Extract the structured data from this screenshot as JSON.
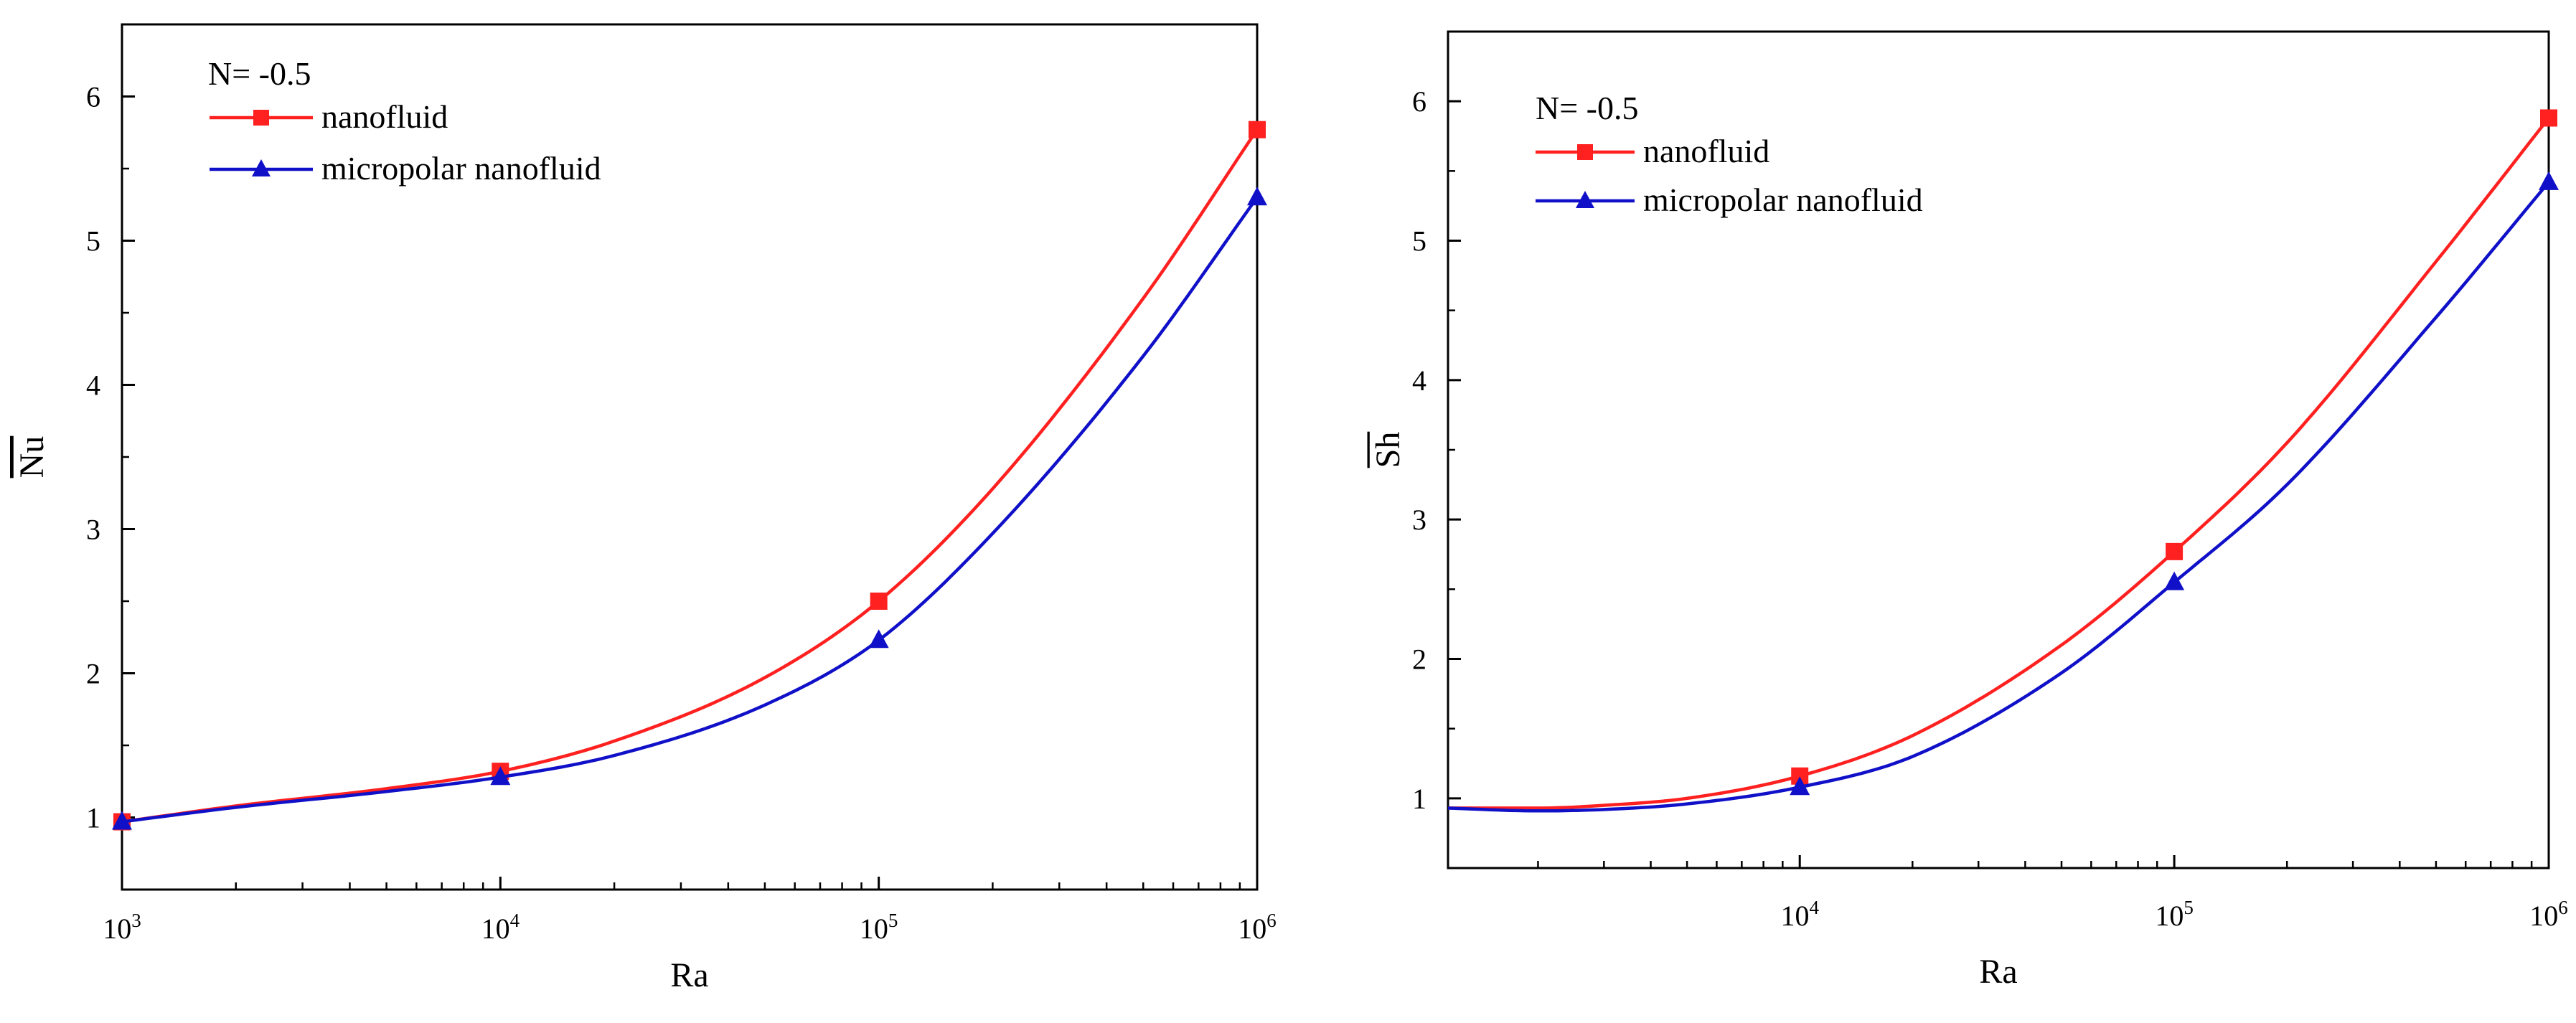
{
  "chart_data": [
    {
      "type": "line",
      "ylabel": "Nu",
      "xlabel": "Ra",
      "x_scale": "log",
      "xlim": [
        1000,
        1000000
      ],
      "ylim": [
        0.5,
        6.5
      ],
      "x_ticks": [
        1000,
        10000,
        100000,
        1000000
      ],
      "x_tick_labels": [
        {
          "base": "10",
          "exp": "3"
        },
        {
          "base": "10",
          "exp": "4"
        },
        {
          "base": "10",
          "exp": "5"
        },
        {
          "base": "10",
          "exp": "6"
        }
      ],
      "y_ticks": [
        1,
        2,
        3,
        4,
        5,
        6
      ],
      "legend": {
        "title": "N= -0.5",
        "placement": "top-left"
      },
      "series": [
        {
          "name": "nanofluid",
          "color": "#ff2020",
          "marker": "square",
          "marker_x": [
            1000,
            10000,
            100000,
            1000000
          ],
          "x": [
            1000,
            2000,
            5000,
            10000,
            20000,
            50000,
            100000,
            200000,
            500000,
            1000000
          ],
          "values": [
            0.97,
            1.08,
            1.2,
            1.32,
            1.53,
            1.97,
            2.5,
            3.28,
            4.6,
            5.77
          ]
        },
        {
          "name": "micropolar nanofluid",
          "color": "#1010c8",
          "marker": "triangle",
          "marker_x": [
            1000,
            10000,
            100000,
            1000000
          ],
          "x": [
            1000,
            2000,
            5000,
            10000,
            20000,
            50000,
            100000,
            200000,
            500000,
            1000000
          ],
          "values": [
            0.97,
            1.07,
            1.18,
            1.28,
            1.43,
            1.78,
            2.23,
            2.97,
            4.2,
            5.3
          ]
        }
      ]
    },
    {
      "type": "line",
      "ylabel": "Sh",
      "xlabel": "Ra",
      "x_scale": "log",
      "xlim": [
        1150,
        1000000
      ],
      "ylim": [
        0.5,
        6.5
      ],
      "x_ticks": [
        10000,
        100000,
        1000000
      ],
      "x_tick_labels": [
        {
          "base": "10",
          "exp": "4"
        },
        {
          "base": "10",
          "exp": "5"
        },
        {
          "base": "10",
          "exp": "6"
        }
      ],
      "y_ticks": [
        1,
        2,
        3,
        4,
        5,
        6
      ],
      "legend": {
        "title": "N= -0.5",
        "placement": "top-left"
      },
      "series": [
        {
          "name": "nanofluid",
          "color": "#ff2020",
          "marker": "square",
          "marker_x": [
            10000,
            100000,
            1000000
          ],
          "x": [
            1150,
            2000,
            3000,
            5000,
            10000,
            20000,
            50000,
            100000,
            200000,
            500000,
            1000000
          ],
          "values": [
            0.93,
            0.93,
            0.95,
            1.0,
            1.16,
            1.45,
            2.1,
            2.77,
            3.55,
            4.85,
            5.88
          ]
        },
        {
          "name": "micropolar nanofluid",
          "color": "#1010c8",
          "marker": "triangle",
          "marker_x": [
            10000,
            100000,
            1000000
          ],
          "x": [
            1150,
            2000,
            3000,
            5000,
            10000,
            20000,
            50000,
            100000,
            200000,
            500000,
            1000000
          ],
          "values": [
            0.93,
            0.91,
            0.92,
            0.96,
            1.08,
            1.3,
            1.9,
            2.55,
            3.25,
            4.45,
            5.42
          ]
        }
      ]
    }
  ]
}
